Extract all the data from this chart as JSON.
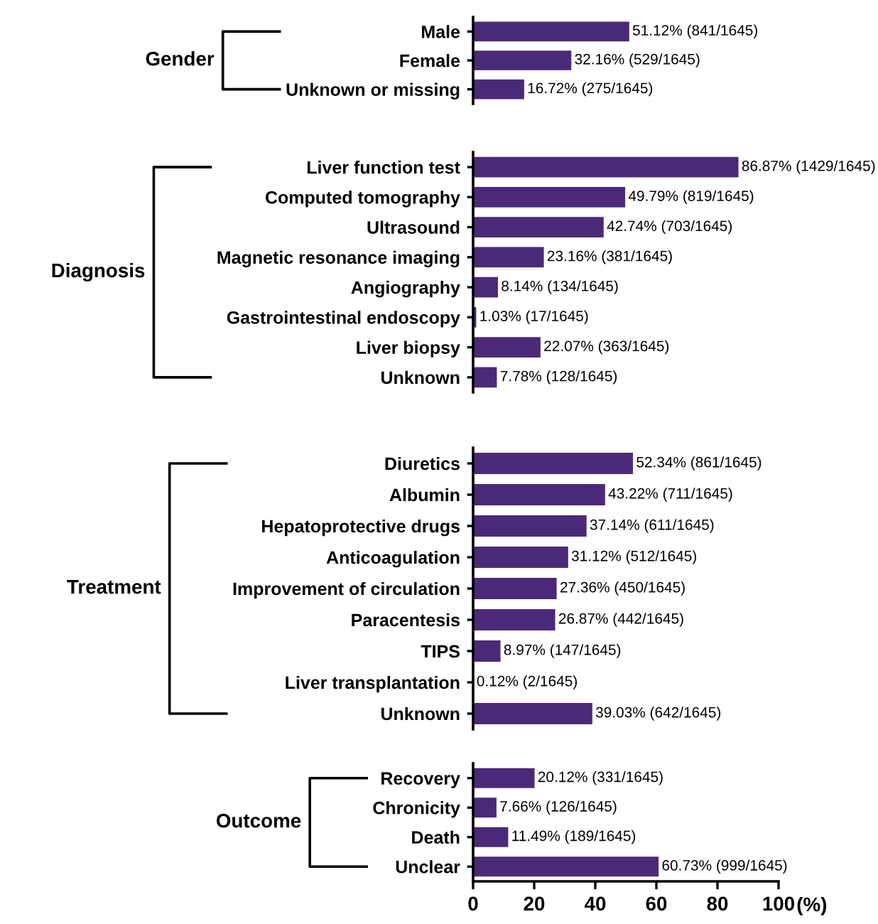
{
  "chart_data": [
    {
      "type": "bar",
      "orientation": "horizontal",
      "ylabel": "Gender",
      "categories": [
        "Male",
        "Female",
        "Unknown or missing"
      ],
      "values": [
        51.12,
        32.16,
        16.72
      ],
      "value_labels": [
        "51.12% (841/1645)",
        "32.16% (529/1645)",
        "16.72% (275/1645)"
      ],
      "color": "#4a2a78",
      "xlim": [
        0,
        100
      ],
      "tick_labels": "y"
    },
    {
      "type": "bar",
      "orientation": "horizontal",
      "ylabel": "Diagnosis",
      "categories": [
        "Liver function test",
        "Computed tomography",
        "Ultrasound",
        "Magnetic resonance imaging",
        "Angiography",
        "Gastrointestinal endoscopy",
        "Liver biopsy",
        "Unknown"
      ],
      "values": [
        86.87,
        49.79,
        42.74,
        23.16,
        8.14,
        1.03,
        22.07,
        7.78
      ],
      "value_labels": [
        "86.87% (1429/1645)",
        "49.79% (819/1645)",
        "42.74% (703/1645)",
        "23.16% (381/1645)",
        "8.14% (134/1645)",
        "1.03% (17/1645)",
        "22.07% (363/1645)",
        "7.78% (128/1645)"
      ],
      "color": "#4a2a78",
      "xlim": [
        0,
        100
      ],
      "tick_labels": "y"
    },
    {
      "type": "bar",
      "orientation": "horizontal",
      "ylabel": "Treatment",
      "categories": [
        "Diuretics",
        "Albumin",
        "Hepatoprotective drugs",
        "Anticoagulation",
        "Improvement of circulation",
        "Paracentesis",
        "TIPS",
        "Liver transplantation",
        "Unknown"
      ],
      "values": [
        52.34,
        43.22,
        37.14,
        31.12,
        27.36,
        26.87,
        8.97,
        0.12,
        39.03
      ],
      "value_labels": [
        "52.34% (861/1645)",
        "43.22% (711/1645)",
        "37.14% (611/1645)",
        "31.12% (512/1645)",
        "27.36% (450/1645)",
        "26.87% (442/1645)",
        "8.97% (147/1645)",
        "0.12% (2/1645)",
        "39.03% (642/1645)"
      ],
      "color": "#4a2a78",
      "xlim": [
        0,
        100
      ],
      "tick_labels": "y"
    },
    {
      "type": "bar",
      "orientation": "horizontal",
      "ylabel": "Outcome",
      "categories": [
        "Recovery",
        "Chronicity",
        "Death",
        "Unclear"
      ],
      "values": [
        20.12,
        7.66,
        11.49,
        60.73
      ],
      "value_labels": [
        "20.12% (331/1645)",
        "7.66% (126/1645)",
        "11.49% (189/1645)",
        "60.73% (999/1645)"
      ],
      "color": "#4a2a78",
      "xlim": [
        0,
        100
      ],
      "xticks": [
        0,
        20,
        40,
        60,
        80,
        100
      ],
      "xlabel": "(%)"
    }
  ]
}
